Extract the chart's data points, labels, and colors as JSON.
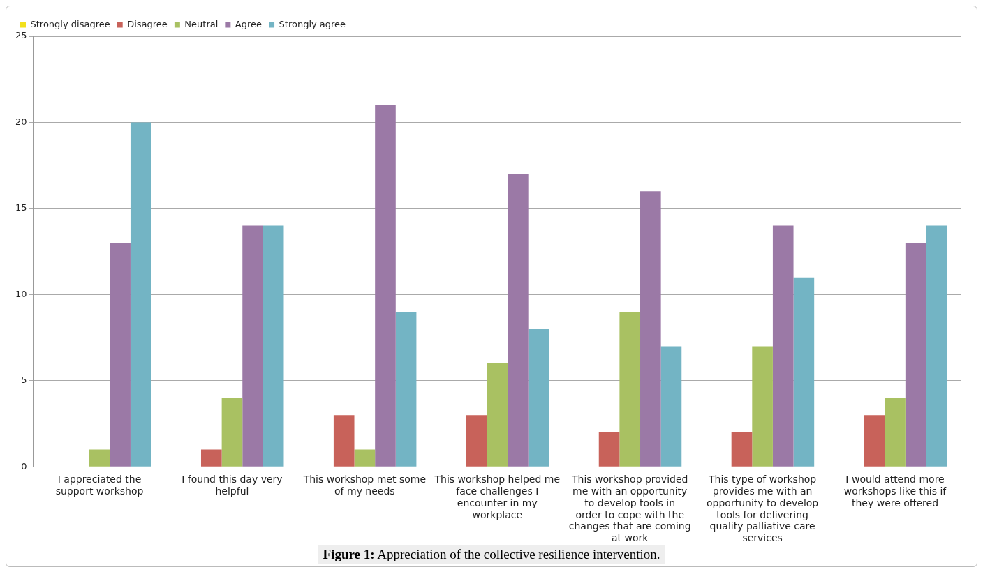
{
  "chart_data": {
    "type": "bar",
    "categories": [
      "I appreciated the support workshop",
      "I found this day very helpful",
      "This workshop met some of my needs",
      "This workshop helped me face challenges I encounter in my workplace",
      "This workshop provided me with an opportunity to develop tools in order to cope with the changes that are coming at work",
      "This type of workshop provides me with an opportunity to develop tools for delivering quality palliative care services",
      "I would attend more workshops like this if they were offered"
    ],
    "series": [
      {
        "name": "Strongly disagree",
        "color": "#f2e01c",
        "values": [
          0,
          0,
          0,
          0,
          0,
          0,
          0
        ]
      },
      {
        "name": "Disagree",
        "color": "#c8625a",
        "values": [
          0,
          1,
          3,
          3,
          2,
          2,
          3
        ]
      },
      {
        "name": "Neutral",
        "color": "#a9c162",
        "values": [
          1,
          4,
          1,
          6,
          9,
          7,
          4
        ]
      },
      {
        "name": "Agree",
        "color": "#9b79a6",
        "values": [
          13,
          14,
          21,
          17,
          16,
          14,
          13
        ]
      },
      {
        "name": "Strongly agree",
        "color": "#73b4c4",
        "values": [
          20,
          14,
          9,
          8,
          7,
          11,
          14
        ]
      }
    ],
    "ylim": [
      0,
      25
    ],
    "yticks": [
      0,
      5,
      10,
      15,
      20,
      25
    ],
    "grid": "y",
    "legend": "top left",
    "annotations": [
      "Figure 1: Appreciation of the collective resilience intervention."
    ]
  }
}
